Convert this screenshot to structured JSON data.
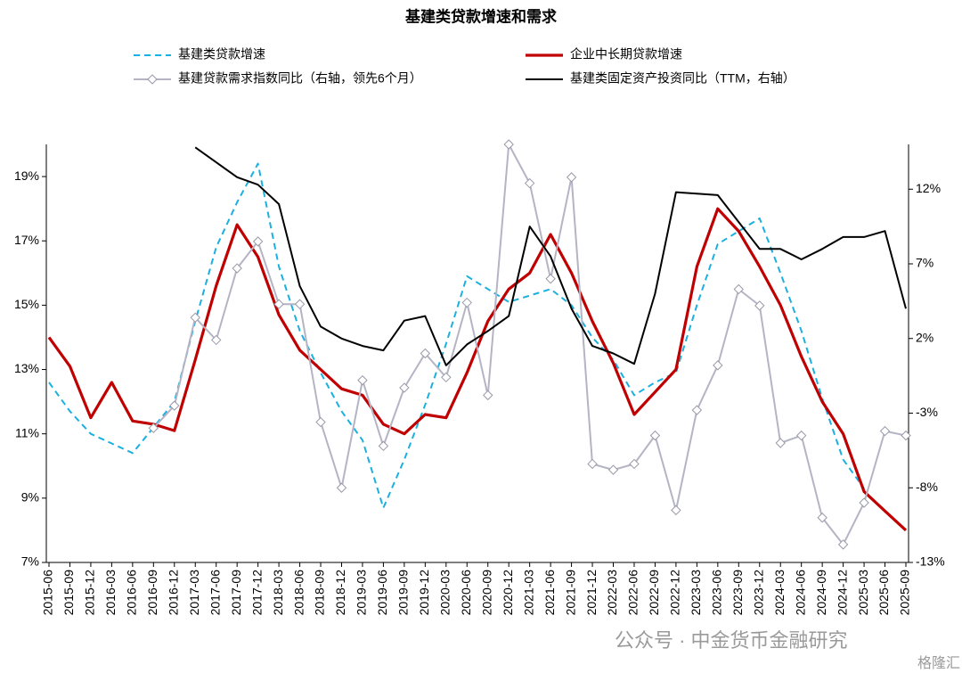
{
  "chart_data": {
    "type": "line",
    "title": "基建类贷款增速和需求",
    "categories": [
      "2015-06",
      "2015-09",
      "2015-12",
      "2016-03",
      "2016-06",
      "2016-09",
      "2016-12",
      "2017-03",
      "2017-06",
      "2017-09",
      "2017-12",
      "2018-03",
      "2018-06",
      "2018-09",
      "2018-12",
      "2019-03",
      "2019-06",
      "2019-09",
      "2019-12",
      "2020-03",
      "2020-06",
      "2020-09",
      "2020-12",
      "2021-03",
      "2021-06",
      "2021-09",
      "2021-12",
      "2022-03",
      "2022-06",
      "2022-09",
      "2022-12",
      "2023-03",
      "2023-06",
      "2023-09",
      "2023-12",
      "2024-03",
      "2024-06",
      "2024-09",
      "2024-12",
      "2025-03",
      "2025-06",
      "2025-09"
    ],
    "series": [
      {
        "name": "基建类贷款增速",
        "color": "#1ab0e0",
        "dash": true,
        "values": [
          12.6,
          11.7,
          11.0,
          10.7,
          10.4,
          11.2,
          12.0,
          14.5,
          16.8,
          18.2,
          19.4,
          16.2,
          14.2,
          12.9,
          11.7,
          10.8,
          8.7,
          10.2,
          11.9,
          13.8,
          15.9,
          15.5,
          15.1,
          15.3,
          15.5,
          15.0,
          14.0,
          13.3,
          12.2,
          12.6,
          12.9,
          15.0,
          16.9,
          17.3,
          17.7,
          16.0,
          14.2,
          12.1,
          10.2,
          9.3,
          null,
          null
        ]
      },
      {
        "name": "企业中长期贷款增速",
        "color": "#c00000",
        "width": 3.2,
        "values": [
          14.0,
          13.1,
          11.5,
          12.6,
          11.4,
          11.3,
          11.1,
          13.3,
          15.6,
          17.5,
          16.5,
          14.7,
          13.6,
          13.0,
          12.4,
          12.2,
          11.3,
          11.0,
          11.6,
          11.5,
          12.9,
          14.5,
          15.5,
          16.0,
          17.2,
          16.0,
          14.5,
          13.2,
          11.6,
          12.3,
          13.0,
          16.2,
          18.0,
          17.3,
          16.2,
          15.0,
          13.4,
          12.0,
          11.0,
          9.2,
          8.6,
          8.0
        ]
      },
      {
        "name": "基建贷款需求指数同比（右轴，领先6个月）",
        "color": "#b4b4c4",
        "marker": "diamond",
        "axis": "y2",
        "values": [
          null,
          null,
          null,
          null,
          null,
          -4.0,
          -2.5,
          3.4,
          1.9,
          6.7,
          8.5,
          4.3,
          4.3,
          -3.6,
          -8.0,
          -0.8,
          -5.2,
          -1.3,
          1.0,
          -0.6,
          4.4,
          -1.8,
          15.0,
          12.4,
          6.0,
          12.8,
          -6.4,
          -6.8,
          -6.4,
          -4.5,
          -9.5,
          -2.8,
          0.2,
          5.3,
          4.2,
          -5.0,
          -4.5,
          -10.0,
          -11.8,
          -9.0,
          -4.2,
          -4.5
        ]
      },
      {
        "name": "基建类固定资产投资同比（TTM，右轴）",
        "color": "#000000",
        "axis": "y2",
        "values": [
          null,
          null,
          null,
          null,
          null,
          null,
          null,
          14.8,
          13.8,
          12.8,
          12.3,
          11.0,
          5.5,
          2.8,
          2.0,
          1.5,
          1.2,
          3.2,
          3.5,
          0.2,
          1.6,
          2.5,
          3.5,
          9.5,
          7.5,
          4.0,
          1.5,
          1.0,
          0.3,
          5.0,
          11.8,
          11.7,
          11.6,
          9.8,
          8.0,
          8.0,
          7.3,
          8.0,
          8.8,
          8.8,
          9.2,
          4.0
        ]
      }
    ],
    "ylim": [
      7,
      20
    ],
    "yticks": [
      {
        "value": 7,
        "label": "7%"
      },
      {
        "value": 9,
        "label": "9%"
      },
      {
        "value": 11,
        "label": "11%"
      },
      {
        "value": 13,
        "label": "13%"
      },
      {
        "value": 15,
        "label": "15%"
      },
      {
        "value": 17,
        "label": "17%"
      },
      {
        "value": 19,
        "label": "19%"
      }
    ],
    "y2lim": [
      -13,
      15
    ],
    "y2ticks": [
      {
        "value": -13,
        "label": "-13%"
      },
      {
        "value": -8,
        "label": "-8%"
      },
      {
        "value": -3,
        "label": "-3%"
      },
      {
        "value": 2,
        "label": "2%"
      },
      {
        "value": 7,
        "label": "7%"
      },
      {
        "value": 12,
        "label": "12%"
      }
    ],
    "watermark": [
      "公众号 · 中金货币金融研究",
      "格隆汇"
    ]
  }
}
